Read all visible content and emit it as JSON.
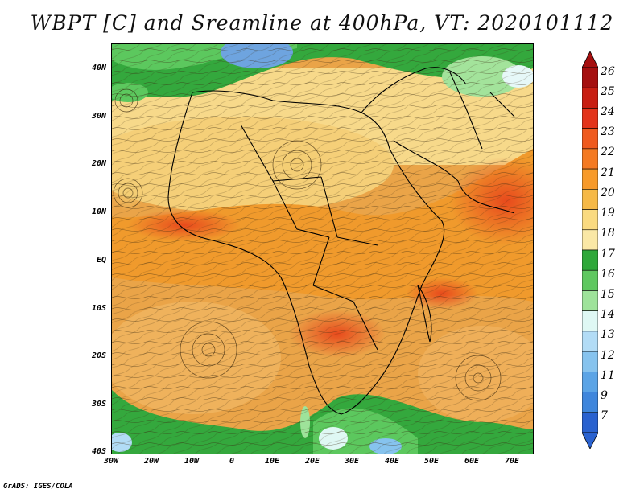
{
  "title": "WBPT [C] and Sreamline at 400hPa, VT: 2020101112",
  "credit": "GrADS: IGES/COLA",
  "map": {
    "lat_labels": [
      "40N",
      "30N",
      "20N",
      "10N",
      "EQ",
      "10S",
      "20S",
      "30S",
      "40S"
    ],
    "lon_labels": [
      "30W",
      "20W",
      "10W",
      "0",
      "10E",
      "20E",
      "30E",
      "40E",
      "50E",
      "60E",
      "70E"
    ],
    "lon_range": [
      -30,
      75
    ],
    "lat_range": [
      -40,
      45
    ]
  },
  "colorbar": {
    "labels": [
      "26",
      "25",
      "24",
      "23",
      "22",
      "21",
      "20",
      "19",
      "18",
      "17",
      "16",
      "15",
      "14",
      "13",
      "12",
      "11",
      "9",
      "7"
    ],
    "colors": [
      "#a50f0f",
      "#c81e12",
      "#e3341b",
      "#ef5a1e",
      "#f47a22",
      "#f79a2a",
      "#f6b947",
      "#fada80",
      "#fae8a6",
      "#2fa83a",
      "#5fc860",
      "#9ee39a",
      "#dff8f4",
      "#b2dcf6",
      "#86c3ee",
      "#5ba4e6",
      "#3f86dc",
      "#2a62cf"
    ]
  }
}
